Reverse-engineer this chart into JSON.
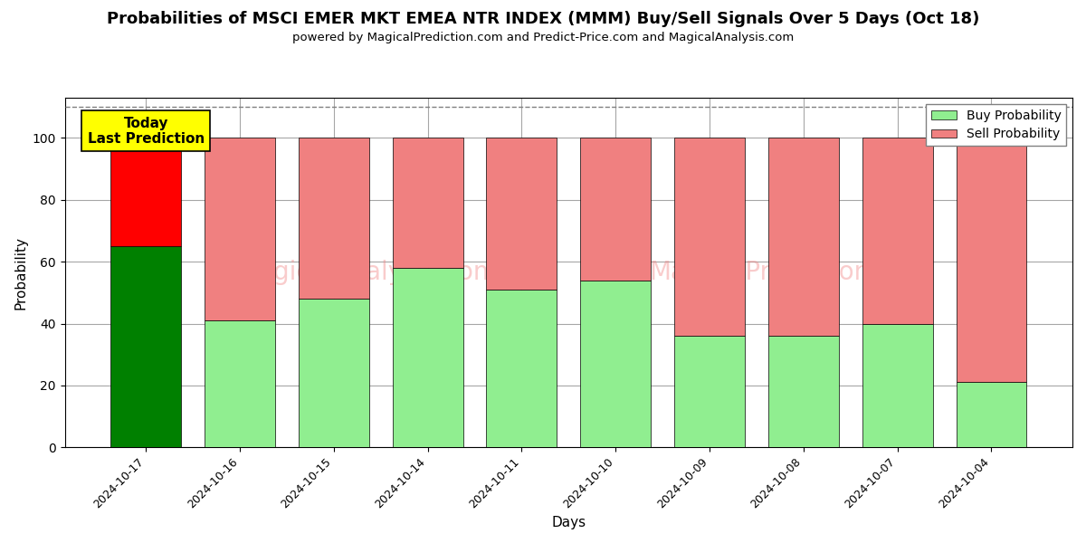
{
  "title": "Probabilities of MSCI EMER MKT EMEA NTR INDEX (MMM) Buy/Sell Signals Over 5 Days (Oct 18)",
  "subtitle": "powered by MagicalPrediction.com and Predict-Price.com and MagicalAnalysis.com",
  "xlabel": "Days",
  "ylabel": "Probability",
  "categories": [
    "2024-10-17",
    "2024-10-16",
    "2024-10-15",
    "2024-10-14",
    "2024-10-11",
    "2024-10-10",
    "2024-10-09",
    "2024-10-08",
    "2024-10-07",
    "2024-10-04"
  ],
  "buy_values": [
    65,
    41,
    48,
    58,
    51,
    54,
    36,
    36,
    40,
    21
  ],
  "sell_values": [
    35,
    59,
    52,
    42,
    49,
    46,
    64,
    64,
    60,
    79
  ],
  "today_buy_color": "#008000",
  "today_sell_color": "#ff0000",
  "buy_color": "#90ee90",
  "sell_color": "#f08080",
  "today_label_bg": "#ffff00",
  "today_label_text": "Today\nLast Prediction",
  "ylim": [
    0,
    113
  ],
  "dashed_line_y": 110,
  "legend_buy": "Buy Probability",
  "legend_sell": "Sell Probability"
}
